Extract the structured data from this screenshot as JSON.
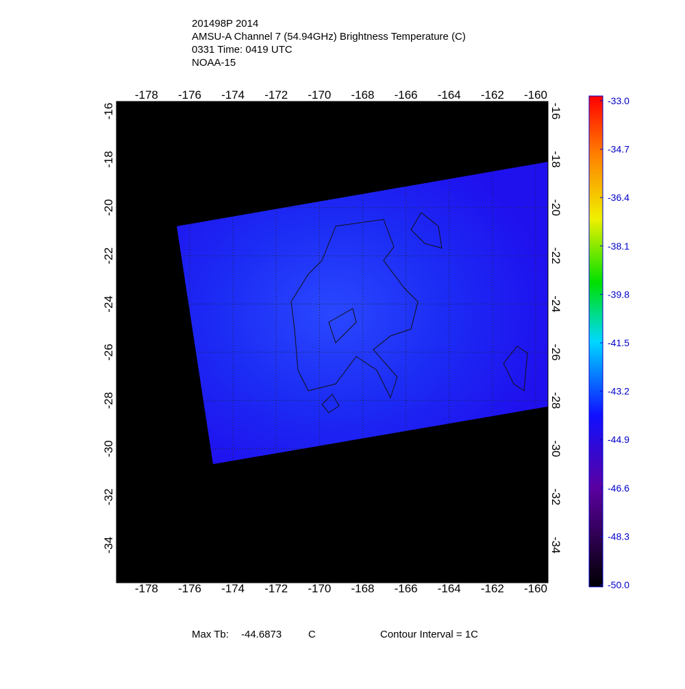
{
  "header": {
    "lines": [
      "201498P 2014",
      "AMSU-A Channel 7 (54.94GHz) Brightness Temperature (C)",
      "0331 Time: 0419 UTC",
      "NOAA-15"
    ]
  },
  "map": {
    "xlim": [
      -179.39,
      -159.43
    ],
    "ylim": [
      -35.56,
      -15.6
    ],
    "xticks": [
      -178,
      -176,
      -174,
      -172,
      -170,
      -168,
      -166,
      -164,
      -162,
      -160
    ],
    "yticks": [
      -16,
      -18,
      -20,
      -22,
      -24,
      -26,
      -28,
      -30,
      -32,
      -34
    ],
    "grid": true
  },
  "colorbar": {
    "range": [
      -50,
      -33
    ],
    "ticks": [
      {
        "value": -33,
        "label": "-33.0"
      },
      {
        "value": -34.7,
        "label": "-34.7"
      },
      {
        "value": -36.4,
        "label": "-36.4"
      },
      {
        "value": -38.1,
        "label": "-38.1"
      },
      {
        "value": -39.8,
        "label": "-39.8"
      },
      {
        "value": -41.5,
        "label": "-41.5"
      },
      {
        "value": -43.2,
        "label": "-43.2"
      },
      {
        "value": -44.9,
        "label": "-44.9"
      },
      {
        "value": -46.6,
        "label": "-46.6"
      },
      {
        "value": -48.3,
        "label": "-48.3"
      },
      {
        "value": -50,
        "label": "-50.0"
      }
    ]
  },
  "footer": {
    "max_label": "Max Tb:",
    "max_value": -44.6873,
    "max_unit": "C",
    "contour": "Contour Interval = 1C"
  }
}
